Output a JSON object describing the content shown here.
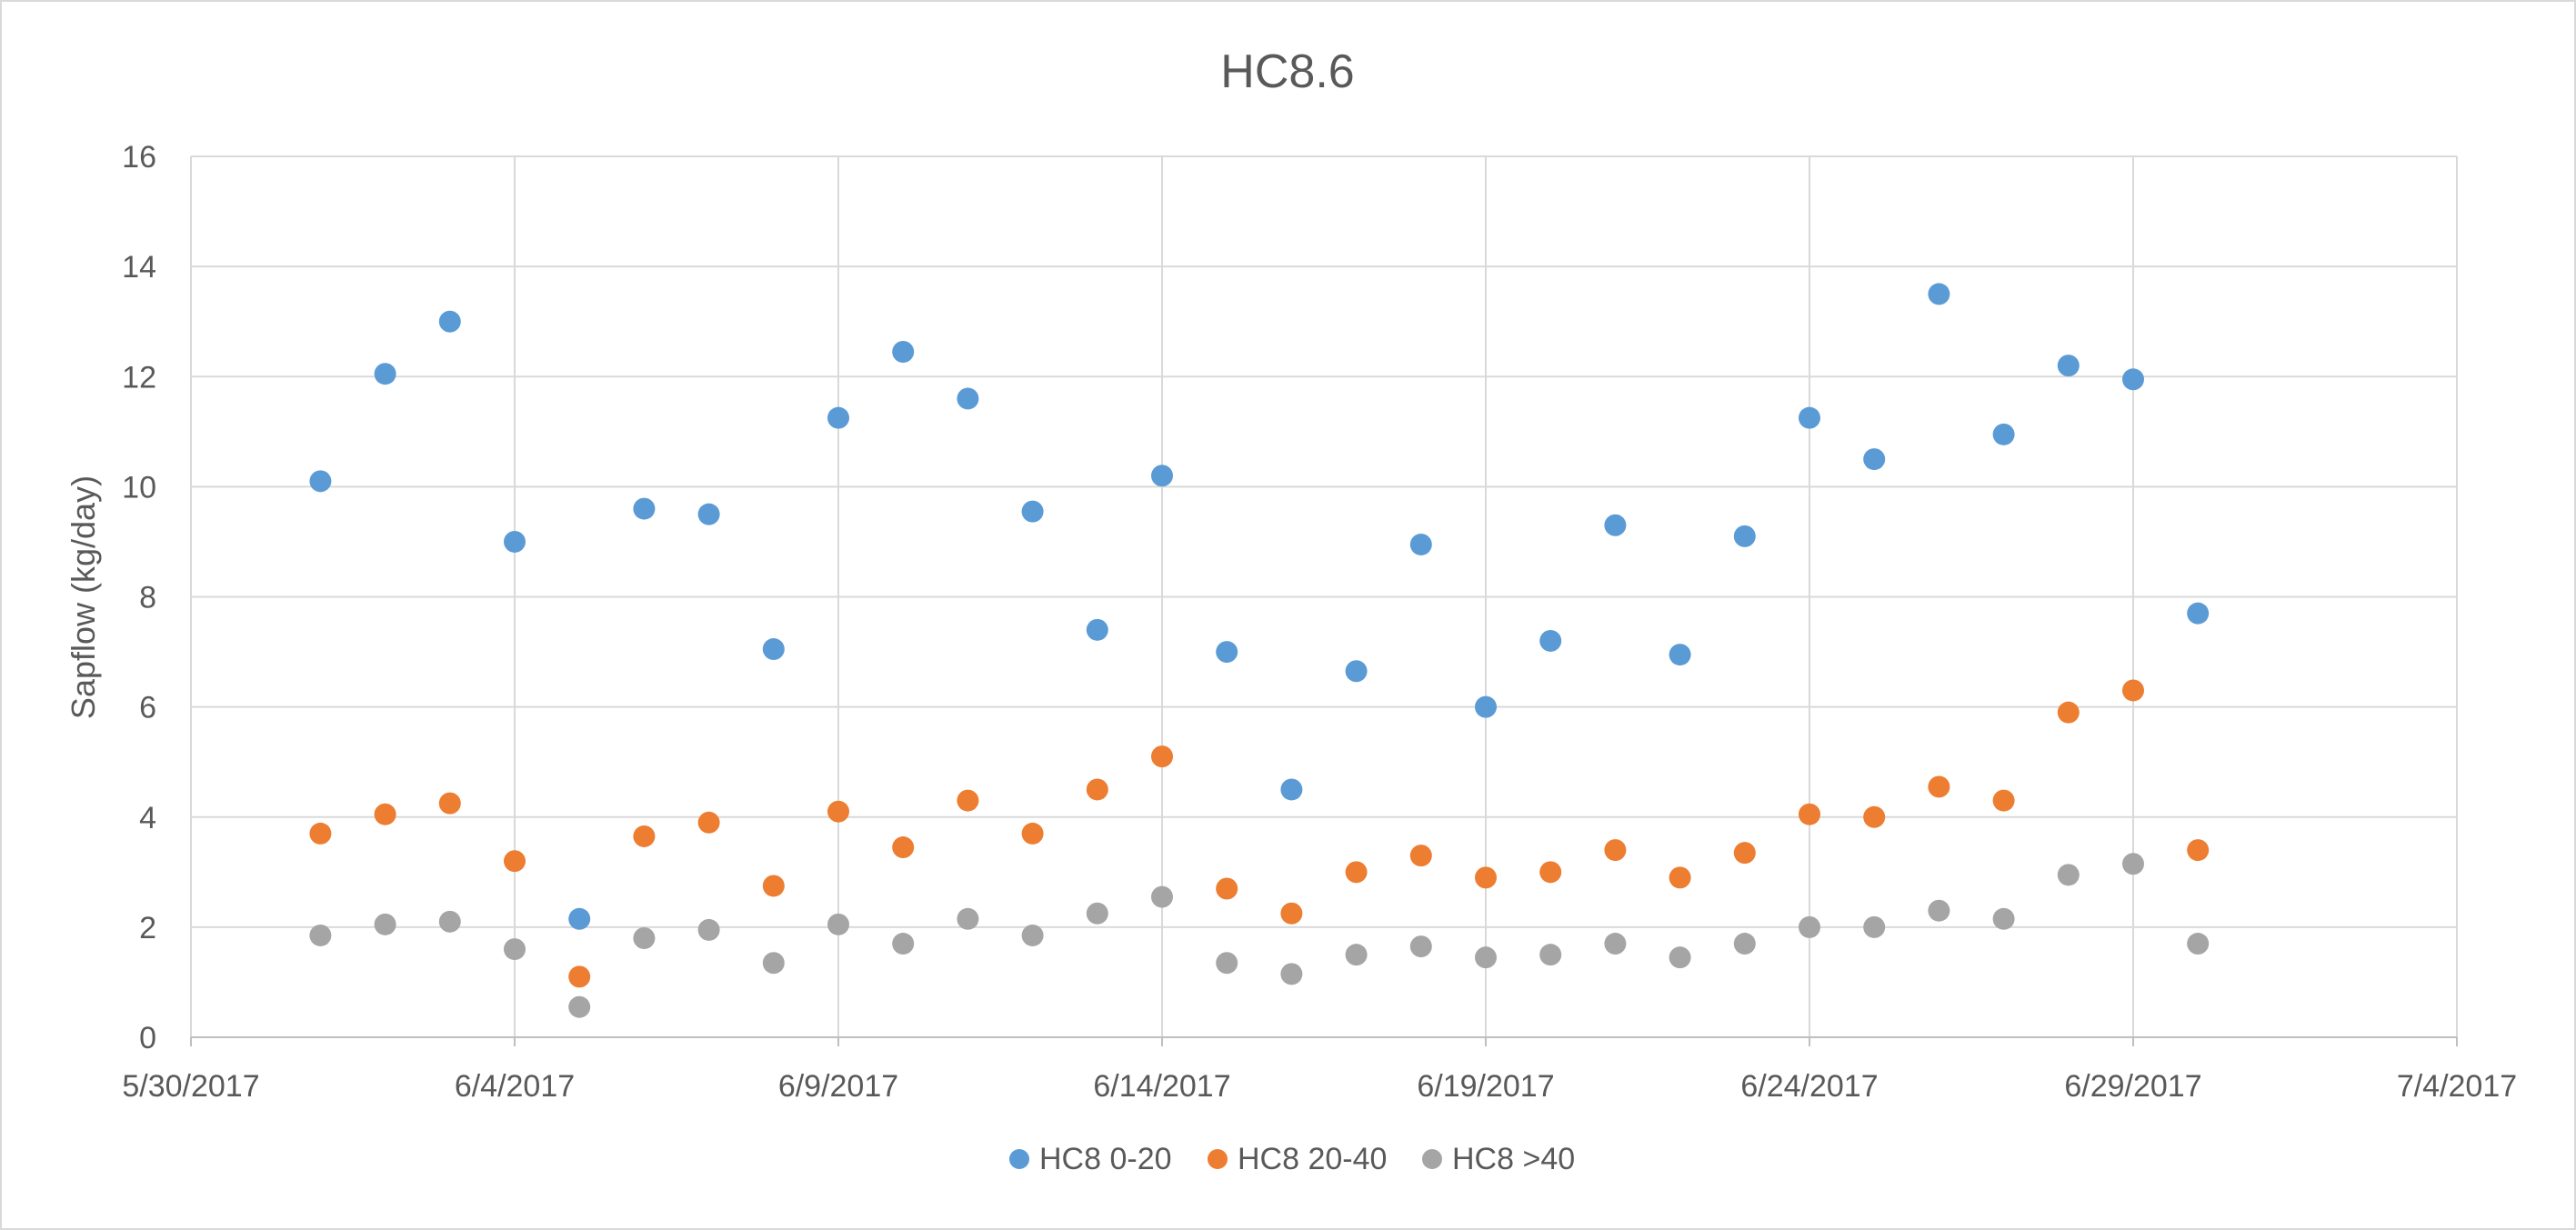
{
  "chart_data": {
    "type": "scatter",
    "title": "HC8.6",
    "xlabel": "",
    "ylabel": "Sapflow (kg/day)",
    "xlim": [
      0,
      35
    ],
    "ylim": [
      0,
      16
    ],
    "x_tick_values": [
      0,
      5,
      10,
      15,
      20,
      25,
      30,
      35
    ],
    "x_tick_labels": [
      "5/30/2017",
      "6/4/2017",
      "6/9/2017",
      "6/14/2017",
      "6/19/2017",
      "6/24/2017",
      "6/29/2017",
      "7/4/2017"
    ],
    "y_ticks": [
      0,
      2,
      4,
      6,
      8,
      10,
      12,
      14,
      16
    ],
    "grid": true,
    "legend_position": "bottom",
    "x_unit_note": "days since 5/30/2017",
    "series": [
      {
        "name": "HC8 0-20",
        "color": "#5b9bd5",
        "x": [
          2,
          3,
          4,
          5,
          6,
          7,
          8,
          9,
          10,
          11,
          12,
          13,
          14,
          15,
          16,
          17,
          18,
          19,
          20,
          21,
          22,
          23,
          24,
          25,
          26,
          27,
          28,
          29,
          30,
          31
        ],
        "y": [
          10.1,
          12.05,
          13.0,
          9.0,
          2.15,
          9.6,
          9.5,
          7.05,
          11.25,
          12.45,
          11.6,
          9.55,
          7.4,
          10.2,
          7.0,
          4.5,
          6.65,
          8.95,
          6.0,
          7.2,
          9.3,
          6.95,
          9.1,
          11.25,
          10.5,
          13.5,
          10.95,
          12.2,
          11.95,
          7.7
        ]
      },
      {
        "name": "HC8 20-40",
        "color": "#ed7d31",
        "x": [
          2,
          3,
          4,
          5,
          6,
          7,
          8,
          9,
          10,
          11,
          12,
          13,
          14,
          15,
          16,
          17,
          18,
          19,
          20,
          21,
          22,
          23,
          24,
          25,
          26,
          27,
          28,
          29,
          30,
          31
        ],
        "y": [
          3.7,
          4.05,
          4.25,
          3.2,
          1.1,
          3.65,
          3.9,
          2.75,
          4.1,
          3.45,
          4.3,
          3.7,
          4.5,
          5.1,
          2.7,
          2.25,
          3.0,
          3.3,
          2.9,
          3.0,
          3.4,
          2.9,
          3.35,
          4.05,
          4.0,
          4.55,
          4.3,
          5.9,
          6.3,
          3.4
        ]
      },
      {
        "name": "HC8 >40",
        "color": "#a5a5a5",
        "x": [
          2,
          3,
          4,
          5,
          6,
          7,
          8,
          9,
          10,
          11,
          12,
          13,
          14,
          15,
          16,
          17,
          18,
          19,
          20,
          21,
          22,
          23,
          24,
          25,
          26,
          27,
          28,
          29,
          30,
          31
        ],
        "y": [
          1.85,
          2.05,
          2.1,
          1.6,
          0.55,
          1.8,
          1.95,
          1.35,
          2.05,
          1.7,
          2.15,
          1.85,
          2.25,
          2.55,
          1.35,
          1.15,
          1.5,
          1.65,
          1.45,
          1.5,
          1.7,
          1.45,
          1.7,
          2.0,
          2.0,
          2.3,
          2.15,
          2.95,
          3.15,
          1.7
        ]
      }
    ]
  }
}
